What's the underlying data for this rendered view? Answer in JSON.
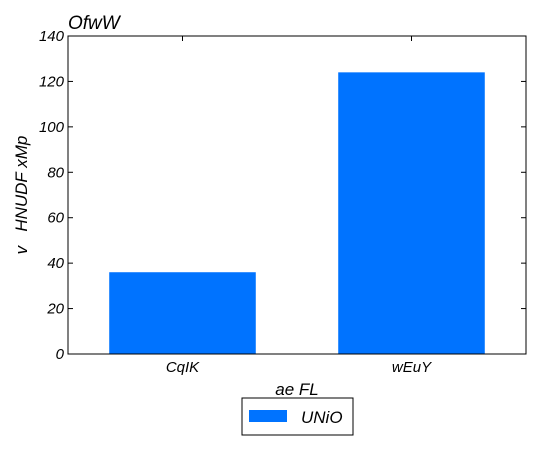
{
  "chart_data": {
    "type": "bar",
    "title": "OfwW",
    "xlabel": "ae FL",
    "ylabel": "v   HNUDF xMp",
    "categories": [
      "CqIK",
      "wEuY"
    ],
    "series": [
      {
        "name": "UNiO",
        "values": [
          36,
          124
        ],
        "color": "#0073ff"
      }
    ],
    "ylim": [
      0,
      140
    ],
    "yticks": [
      0,
      20,
      40,
      60,
      80,
      100,
      120,
      140
    ],
    "grid": false,
    "legend": {
      "position": "bottom-center"
    }
  }
}
